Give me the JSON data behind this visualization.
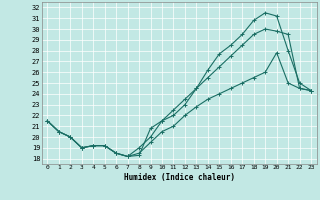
{
  "xlabel": "Humidex (Indice chaleur)",
  "bg_color": "#c2e8e4",
  "grid_color": "#ffffff",
  "line_color": "#1a6e64",
  "xlim": [
    -0.5,
    23.5
  ],
  "ylim": [
    17.5,
    32.5
  ],
  "xticks": [
    0,
    1,
    2,
    3,
    4,
    5,
    6,
    7,
    8,
    9,
    10,
    11,
    12,
    13,
    14,
    15,
    16,
    17,
    18,
    19,
    20,
    21,
    22,
    23
  ],
  "yticks": [
    18,
    19,
    20,
    21,
    22,
    23,
    24,
    25,
    26,
    27,
    28,
    29,
    30,
    31,
    32
  ],
  "line1_x": [
    0,
    1,
    2,
    3,
    4,
    5,
    6,
    7,
    8,
    9,
    10,
    11,
    12,
    13,
    14,
    15,
    16,
    17,
    18,
    19,
    20,
    21,
    22,
    23
  ],
  "line1_y": [
    21.5,
    20.5,
    20.0,
    19.0,
    19.2,
    19.2,
    18.5,
    18.2,
    18.3,
    20.8,
    21.5,
    22.0,
    23.0,
    24.5,
    26.2,
    27.7,
    28.5,
    29.5,
    30.8,
    31.5,
    31.2,
    28.0,
    25.0,
    24.3
  ],
  "line2_x": [
    0,
    1,
    2,
    3,
    4,
    5,
    6,
    7,
    8,
    9,
    10,
    11,
    12,
    13,
    14,
    15,
    16,
    17,
    18,
    19,
    20,
    21,
    22,
    23
  ],
  "line2_y": [
    21.5,
    20.5,
    20.0,
    19.0,
    19.2,
    19.2,
    18.5,
    18.2,
    19.0,
    20.0,
    21.5,
    22.5,
    23.5,
    24.5,
    25.5,
    26.5,
    27.5,
    28.5,
    29.5,
    30.0,
    29.8,
    29.5,
    24.5,
    24.3
  ],
  "line3_x": [
    0,
    1,
    2,
    3,
    4,
    5,
    6,
    7,
    8,
    9,
    10,
    11,
    12,
    13,
    14,
    15,
    16,
    17,
    18,
    19,
    20,
    21,
    22,
    23
  ],
  "line3_y": [
    21.5,
    20.5,
    20.0,
    19.0,
    19.2,
    19.2,
    18.5,
    18.2,
    18.5,
    19.5,
    20.5,
    21.0,
    22.0,
    22.8,
    23.5,
    24.0,
    24.5,
    25.0,
    25.5,
    26.0,
    27.8,
    25.0,
    24.5,
    24.3
  ]
}
